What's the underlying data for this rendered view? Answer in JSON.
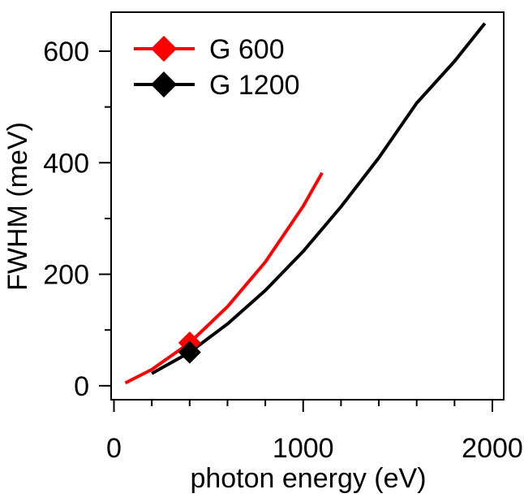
{
  "chart_data": {
    "type": "line",
    "xlabel": "photon energy (eV)",
    "ylabel": "FWHM (meV)",
    "xlim": [
      -15,
      2060
    ],
    "ylim": [
      -25,
      670
    ],
    "x_ticks_major": [
      0,
      1000,
      2000
    ],
    "x_ticks_minor": [
      200,
      400,
      600,
      800,
      1200,
      1400,
      1600,
      1800
    ],
    "y_ticks_major": [
      0,
      200,
      400,
      600
    ],
    "y_ticks_minor": [
      100,
      300,
      500
    ],
    "x_tick_labels": [
      "0",
      "1000",
      "2000"
    ],
    "y_tick_labels": [
      "0",
      "200",
      "400",
      "600"
    ],
    "grid": false,
    "legend_position": "top-left",
    "series": [
      {
        "name": "G 600",
        "color": "#ff0000",
        "x": [
          60,
          200,
          400,
          600,
          800,
          1000,
          1100
        ],
        "y": [
          5,
          29,
          77,
          142,
          222,
          322,
          382
        ],
        "marker": {
          "x": 400,
          "y": 77
        }
      },
      {
        "name": "G 1200",
        "color": "#000000",
        "x": [
          200,
          400,
          600,
          800,
          1000,
          1200,
          1400,
          1600,
          1800,
          1960
        ],
        "y": [
          22,
          60,
          111,
          171,
          241,
          321,
          409,
          507,
          582,
          650
        ],
        "marker": {
          "x": 400,
          "y": 60
        }
      }
    ]
  }
}
